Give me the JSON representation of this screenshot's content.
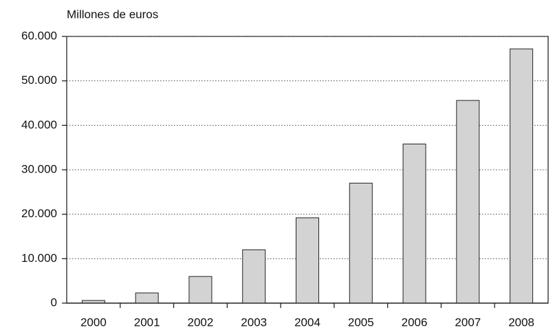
{
  "chart_data": {
    "type": "bar",
    "title": "Millones de euros",
    "categories": [
      "2000",
      "2001",
      "2002",
      "2003",
      "2004",
      "2005",
      "2006",
      "2007",
      "2008"
    ],
    "values": [
      600,
      2300,
      6000,
      12000,
      19200,
      27000,
      35800,
      45600,
      57200
    ],
    "color": "#d3d3d3",
    "ylim": [
      0,
      60000
    ],
    "yticks": [
      0,
      {
        "value": 10000,
        "label": "10.000"
      },
      {
        "value": 20000,
        "label": "20.000"
      },
      {
        "value": 30000,
        "label": "30.000"
      },
      {
        "value": 40000,
        "label": "40.000"
      },
      {
        "value": 50000,
        "label": "50.000"
      },
      {
        "value": 60000,
        "label": "60.000"
      }
    ],
    "grid": true
  }
}
